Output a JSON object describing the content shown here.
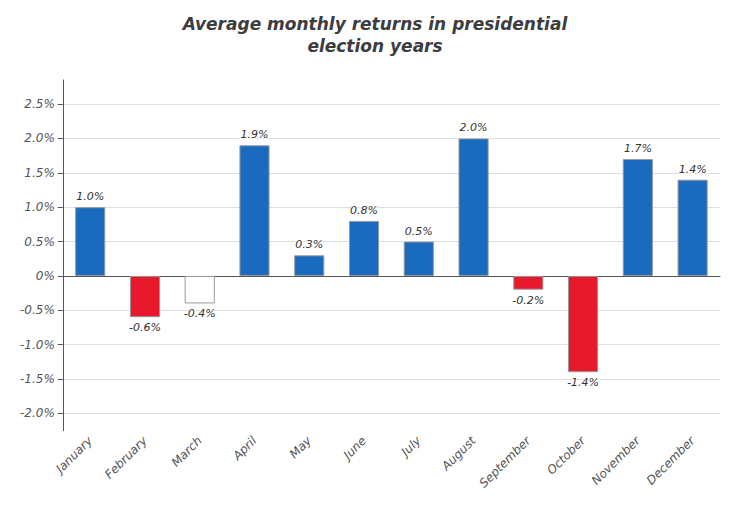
{
  "chart_data": {
    "type": "bar",
    "title": "Average monthly returns in presidential\nelection years",
    "categories": [
      "January",
      "February",
      "March",
      "April",
      "May",
      "June",
      "July",
      "August",
      "September",
      "October",
      "November",
      "December"
    ],
    "values": [
      1.0,
      -0.6,
      -0.4,
      1.9,
      0.3,
      0.8,
      0.5,
      2.0,
      -0.2,
      -1.4,
      1.7,
      1.4
    ],
    "value_labels": [
      "1.0%",
      "-0.6%",
      "-0.4%",
      "1.9%",
      "0.3%",
      "0.8%",
      "0.5%",
      "2.0%",
      "-0.2%",
      "-1.4%",
      "1.7%",
      "1.4%"
    ],
    "colors": [
      "#1a6bbf",
      "#e8192c",
      "#ffffff",
      "#1a6bbf",
      "#1a6bbf",
      "#1a6bbf",
      "#1a6bbf",
      "#1a6bbf",
      "#e8192c",
      "#e8192c",
      "#1a6bbf",
      "#1a6bbf"
    ],
    "ylim": [
      -2.25,
      2.85
    ],
    "yticks": [
      {
        "value": -2.0,
        "label": "-2.0%"
      },
      {
        "value": -1.5,
        "label": "-1.5%"
      },
      {
        "value": -1.0,
        "label": "-1.0%"
      },
      {
        "value": -0.5,
        "label": "-0.5%"
      },
      {
        "value": 0.0,
        "label": "0%"
      },
      {
        "value": 0.5,
        "label": "0.5%"
      },
      {
        "value": 1.0,
        "label": "1.0%"
      },
      {
        "value": 1.5,
        "label": "1.5%"
      },
      {
        "value": 2.0,
        "label": "2.0%"
      },
      {
        "value": 2.5,
        "label": "2.5%"
      }
    ],
    "grid": true,
    "data_labels": true
  }
}
